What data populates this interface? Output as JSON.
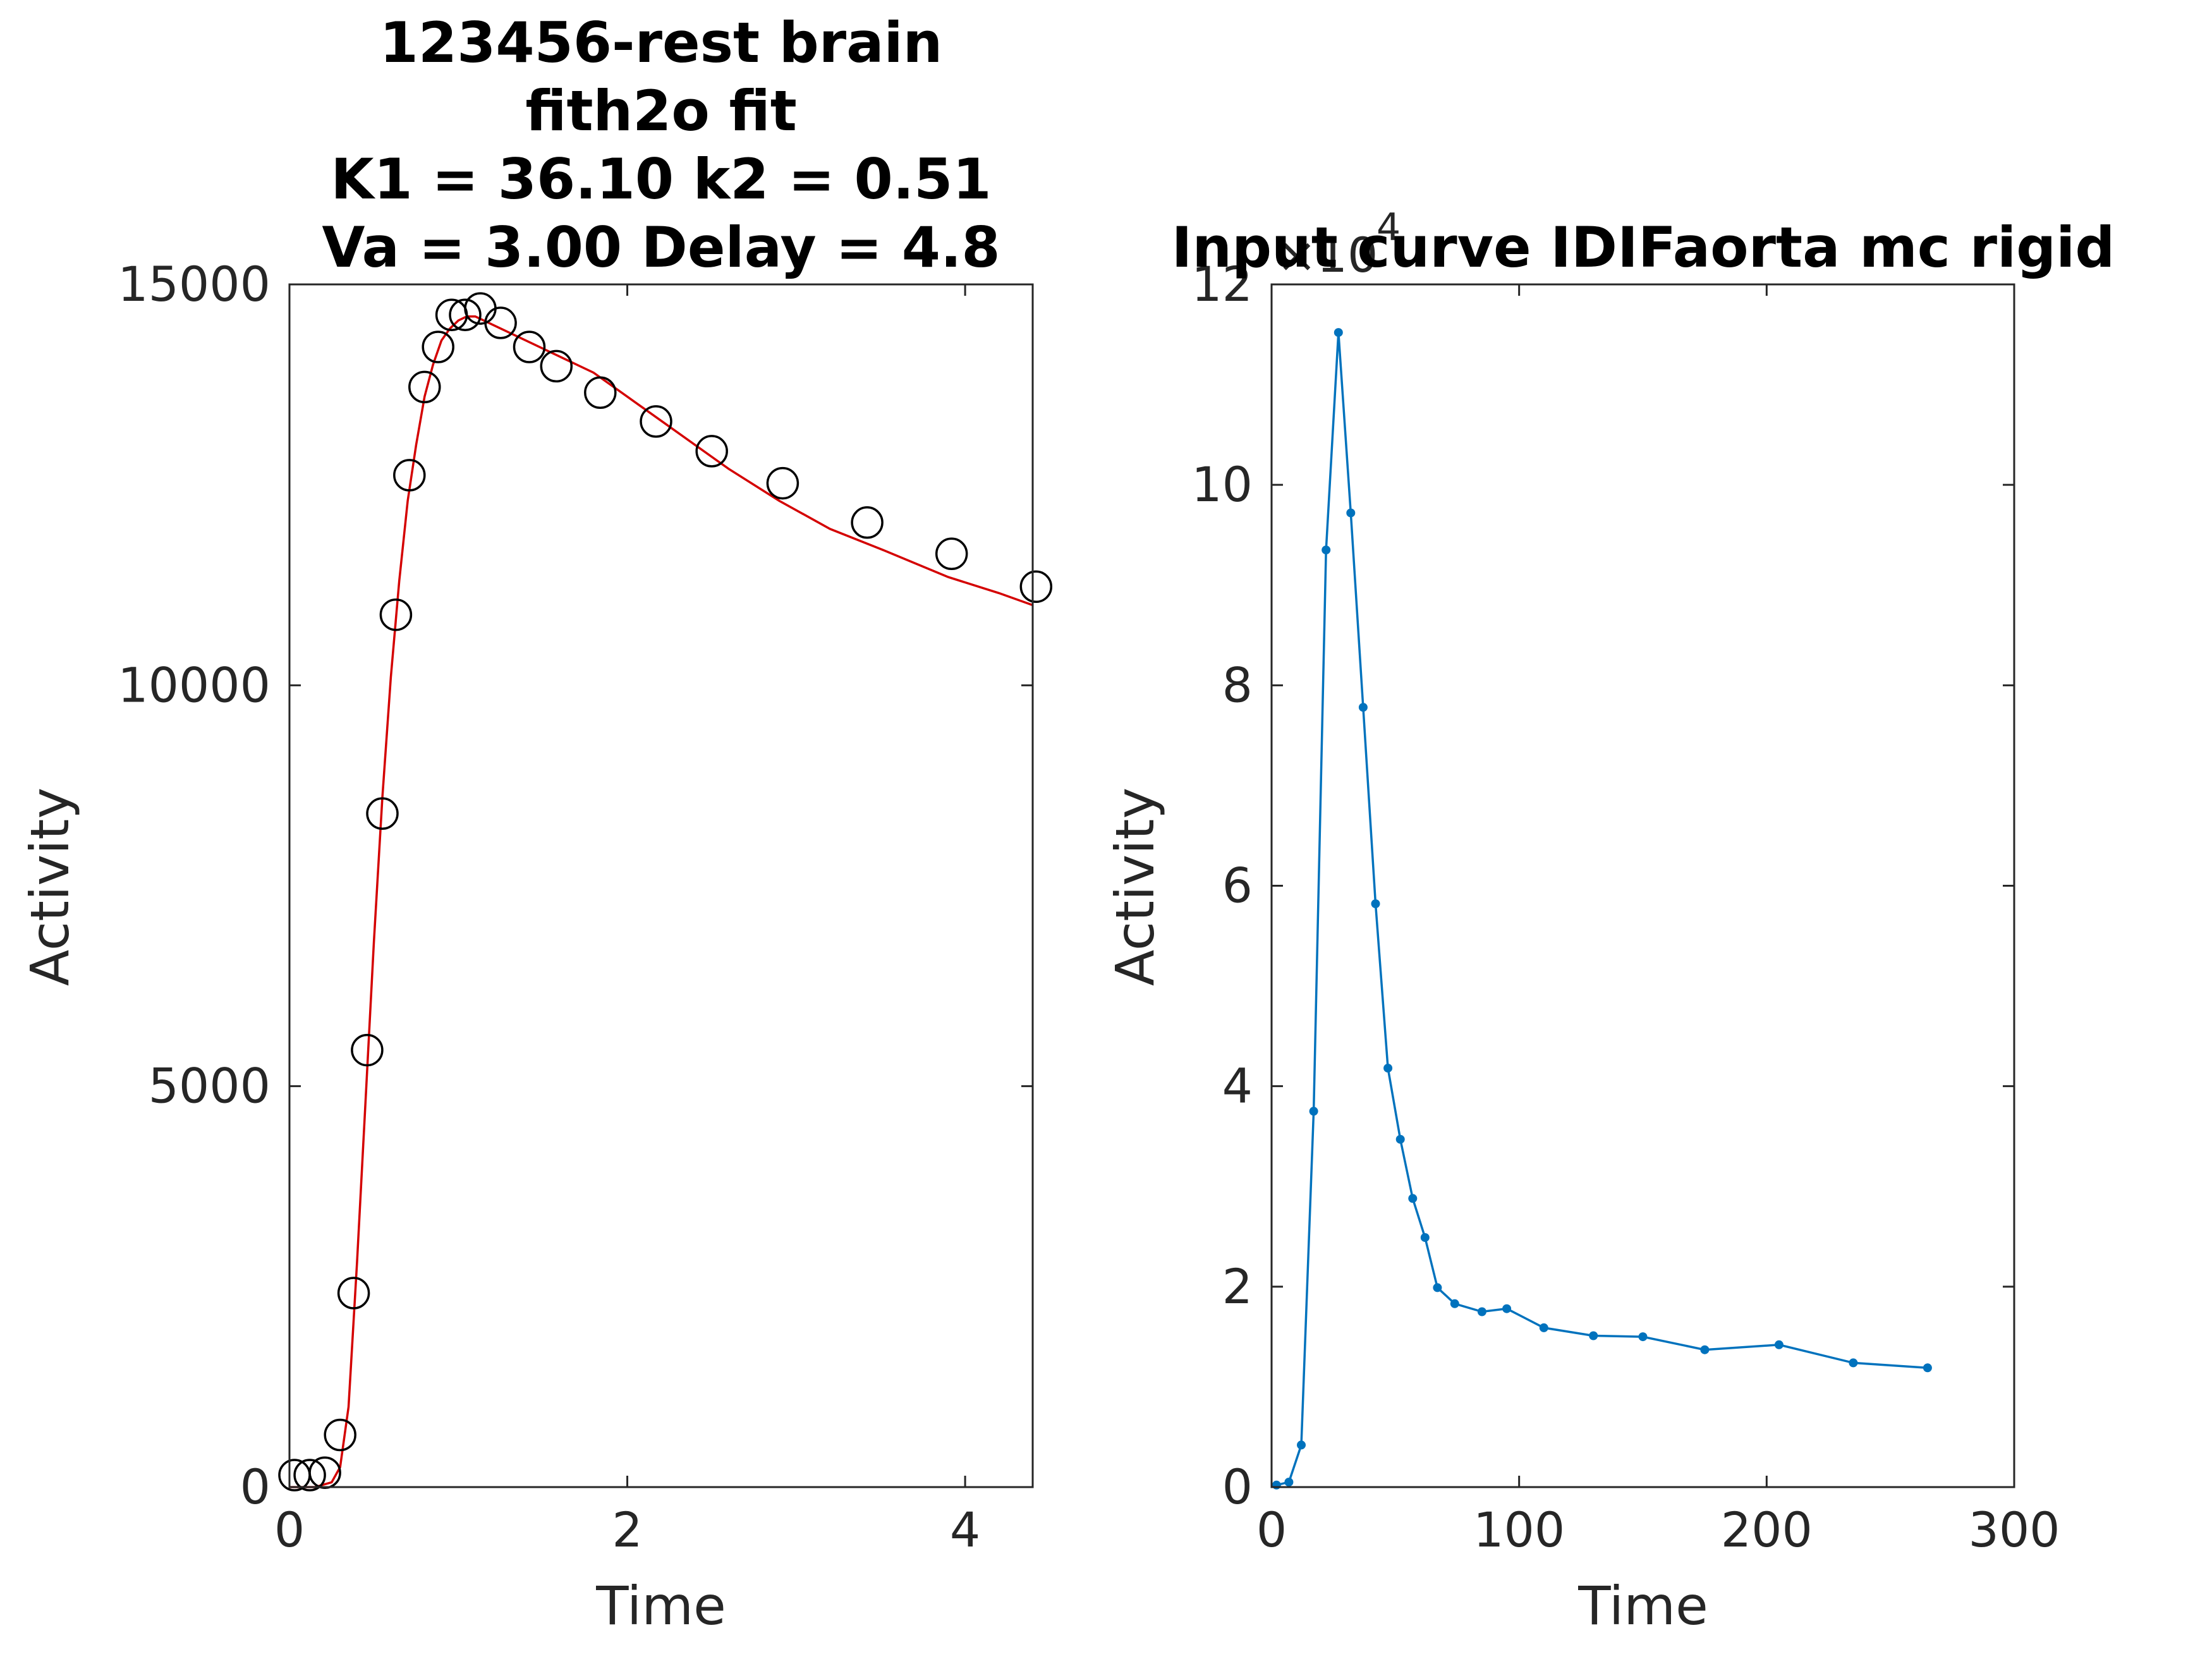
{
  "chart_data": [
    {
      "type": "scatter",
      "title_lines": [
        "123456-rest brain",
        "fith2o fit",
        "K1 = 36.10 k2 = 0.51",
        "Va = 3.00 Delay = 4.8"
      ],
      "xlabel": "Time",
      "ylabel": "Activity",
      "xlim": [
        0,
        4.4
      ],
      "ylim": [
        0,
        15000
      ],
      "xticks": [
        0,
        2,
        4
      ],
      "yticks": [
        0,
        5000,
        10000,
        15000
      ],
      "colors": {
        "measured": "#000000",
        "fit": "#d40000"
      },
      "series": [
        {
          "kind": "markers",
          "x": [
            0.03,
            0.12,
            0.21,
            0.3,
            0.38,
            0.46,
            0.55,
            0.63,
            0.71,
            0.8,
            0.88,
            0.96,
            1.04,
            1.13,
            1.25,
            1.42,
            1.58,
            1.84,
            2.17,
            2.5,
            2.92,
            3.42,
            3.92,
            4.42
          ],
          "y": [
            150,
            150,
            180,
            650,
            2420,
            5450,
            8400,
            10880,
            12620,
            13720,
            14220,
            14620,
            14620,
            14700,
            14520,
            14220,
            13980,
            13650,
            13290,
            12920,
            12520,
            12030,
            11640,
            11230
          ]
        },
        {
          "kind": "line",
          "x": [
            0.0,
            0.15,
            0.25,
            0.3,
            0.35,
            0.4,
            0.45,
            0.5,
            0.55,
            0.6,
            0.65,
            0.7,
            0.75,
            0.8,
            0.85,
            0.9,
            0.95,
            1.0,
            1.05,
            1.1,
            1.2,
            1.4,
            1.6,
            1.8,
            2.0,
            2.3,
            2.6,
            2.9,
            3.2,
            3.5,
            3.9,
            4.2,
            4.4
          ],
          "y": [
            0,
            0,
            60,
            250,
            1000,
            2800,
            4800,
            6800,
            8600,
            10100,
            11300,
            12300,
            13000,
            13600,
            14000,
            14300,
            14450,
            14550,
            14600,
            14600,
            14500,
            14300,
            14100,
            13900,
            13600,
            13150,
            12700,
            12300,
            11950,
            11700,
            11350,
            11150,
            11000
          ]
        }
      ]
    },
    {
      "type": "line",
      "title": "Input curve IDIFaorta mc rigid",
      "xlabel": "Time",
      "ylabel": "Activity",
      "xlim": [
        0,
        300
      ],
      "ylim": [
        0,
        12
      ],
      "xticks": [
        0,
        100,
        200,
        300
      ],
      "yticks": [
        0,
        2,
        4,
        6,
        8,
        10,
        12
      ],
      "y_exponent_label": "×10",
      "y_exponent_power": "4",
      "colors": {
        "line": "#0072bd"
      },
      "series": [
        {
          "x": [
            2,
            7,
            12,
            17,
            22,
            27,
            32,
            37,
            42,
            47,
            52,
            57,
            62,
            67,
            74,
            85,
            95,
            110,
            130,
            150,
            175,
            205,
            235,
            265
          ],
          "y": [
            0.02,
            0.05,
            0.42,
            3.75,
            9.35,
            11.52,
            9.72,
            7.78,
            5.82,
            4.18,
            3.47,
            2.88,
            2.49,
            1.99,
            1.83,
            1.75,
            1.78,
            1.59,
            1.51,
            1.5,
            1.37,
            1.42,
            1.24,
            1.19
          ]
        }
      ]
    }
  ]
}
